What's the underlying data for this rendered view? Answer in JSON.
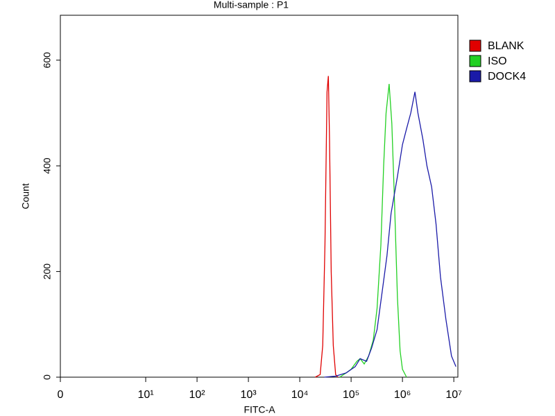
{
  "chart_data": {
    "type": "line",
    "title": "Multi-sample : P1",
    "x_label": "FITC-A",
    "y_label": "Count",
    "xscale": "log",
    "xlim": [
      0,
      12000000
    ],
    "xticks": [
      0,
      {
        "value": 10,
        "label": "10¹"
      },
      {
        "value": 100,
        "label": "10²"
      },
      {
        "value": 1000,
        "label": "10³"
      },
      {
        "value": 10000,
        "label": "10⁴"
      },
      {
        "value": 100000,
        "label": "10⁵"
      },
      {
        "value": 1000000,
        "label": "10⁶"
      },
      {
        "value": 10000000,
        "label": "10⁷"
      }
    ],
    "ylim": [
      0,
      685
    ],
    "yticks": [
      0,
      200,
      400,
      600
    ],
    "legend": "right",
    "series": [
      {
        "name": "BLANK",
        "color": "#e00000",
        "x": [
          20000,
          25000,
          28000,
          31000,
          34000,
          36000,
          38000,
          41000,
          45000,
          50000,
          55000
        ],
        "values": [
          0,
          5,
          60,
          250,
          540,
          570,
          450,
          200,
          60,
          5,
          0
        ]
      },
      {
        "name": "ISO",
        "color": "#22d022",
        "x": [
          60000,
          80000,
          100000,
          130000,
          150000,
          180000,
          220000,
          270000,
          320000,
          380000,
          430000,
          480000,
          550000,
          620000,
          700000,
          800000,
          900000,
          1000000,
          1200000
        ],
        "values": [
          0,
          8,
          15,
          30,
          35,
          25,
          40,
          70,
          130,
          250,
          400,
          500,
          555,
          480,
          330,
          150,
          50,
          15,
          0
        ]
      },
      {
        "name": "DOCK4",
        "color": "#1a1aa8",
        "x": [
          30000,
          50000,
          80000,
          120000,
          150000,
          200000,
          250000,
          320000,
          400000,
          500000,
          600000,
          800000,
          1000000,
          1200000,
          1450000,
          1750000,
          2000000,
          2500000,
          3000000,
          3700000,
          4500000,
          5500000,
          7000000,
          9000000,
          11000000
        ],
        "values": [
          0,
          2,
          8,
          20,
          35,
          30,
          55,
          90,
          160,
          230,
          310,
          380,
          440,
          470,
          500,
          540,
          500,
          450,
          400,
          360,
          290,
          190,
          110,
          40,
          20
        ]
      }
    ]
  }
}
